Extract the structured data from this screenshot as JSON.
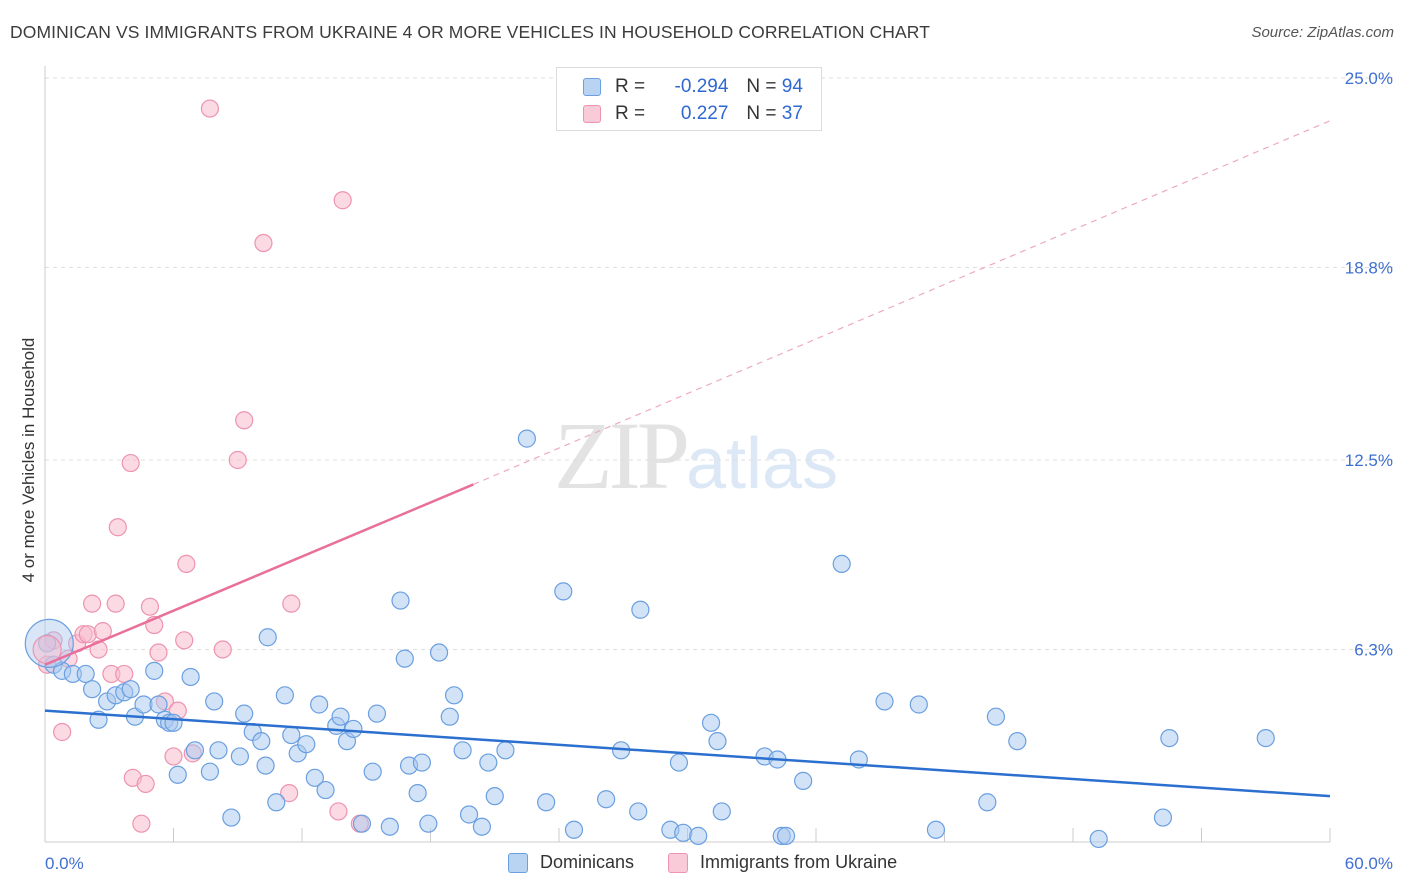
{
  "title": "DOMINICAN VS IMMIGRANTS FROM UKRAINE 4 OR MORE VEHICLES IN HOUSEHOLD CORRELATION CHART",
  "source": "Source: ZipAtlas.com",
  "watermark": {
    "zip": "ZIP",
    "atlas": "atlas"
  },
  "legend": {
    "rows": [
      {
        "r_label": "R =",
        "r_value": "-0.294",
        "n_label": "N =",
        "n_value": "94"
      },
      {
        "r_label": "R =",
        "r_value": "0.227",
        "n_label": "N =",
        "n_value": "37"
      }
    ]
  },
  "bottom_legend": [
    "Dominicans",
    "Immigrants from Ukraine"
  ],
  "colors": {
    "blue_fill": "#a8c8f0",
    "blue_stroke": "#6a9fe0",
    "blue_line": "#2b6fcf",
    "pink_fill": "#f7bccd",
    "pink_stroke": "#ee93b0",
    "pink_line": "#e8709a",
    "grid": "#dedede",
    "tick_label": "#3f6fd0"
  },
  "chart_data": {
    "type": "scatter",
    "title": "DOMINICAN VS IMMIGRANTS FROM UKRAINE 4 OR MORE VEHICLES IN HOUSEHOLD CORRELATION CHART",
    "xlabel": "",
    "ylabel": "4 or more Vehicles in Household",
    "xlim": [
      0,
      60
    ],
    "ylim": [
      0,
      25
    ],
    "x_tick_labels": [
      "0.0%",
      "60.0%"
    ],
    "y_ticks": [
      6.3,
      12.5,
      18.8,
      25.0
    ],
    "y_tick_labels": [
      "6.3%",
      "12.5%",
      "18.8%",
      "25.0%"
    ],
    "grid": true,
    "legend_position": "top-center",
    "series": [
      {
        "name": "Dominicans",
        "trend": {
          "x": [
            0,
            60
          ],
          "y": [
            4.3,
            1.5
          ],
          "style": "solid"
        },
        "points": [
          [
            0.1,
            6.5
          ],
          [
            0.4,
            5.8
          ],
          [
            0.8,
            5.6
          ],
          [
            1.3,
            5.5
          ],
          [
            1.9,
            5.5
          ],
          [
            2.2,
            5.0
          ],
          [
            2.5,
            4.0
          ],
          [
            2.9,
            4.6
          ],
          [
            3.3,
            4.8
          ],
          [
            3.7,
            4.9
          ],
          [
            4.0,
            5.0
          ],
          [
            4.2,
            4.1
          ],
          [
            4.6,
            4.5
          ],
          [
            5.1,
            5.6
          ],
          [
            5.3,
            4.5
          ],
          [
            5.6,
            4.0
          ],
          [
            5.8,
            3.9
          ],
          [
            6.0,
            3.9
          ],
          [
            6.2,
            2.2
          ],
          [
            6.8,
            5.4
          ],
          [
            7.0,
            3.0
          ],
          [
            7.7,
            2.3
          ],
          [
            7.9,
            4.6
          ],
          [
            8.1,
            3.0
          ],
          [
            8.7,
            0.8
          ],
          [
            9.1,
            2.8
          ],
          [
            9.3,
            4.2
          ],
          [
            9.7,
            3.6
          ],
          [
            10.1,
            3.3
          ],
          [
            10.3,
            2.5
          ],
          [
            10.4,
            6.7
          ],
          [
            10.8,
            1.3
          ],
          [
            11.2,
            4.8
          ],
          [
            11.5,
            3.5
          ],
          [
            11.8,
            2.9
          ],
          [
            12.2,
            3.2
          ],
          [
            12.6,
            2.1
          ],
          [
            12.8,
            4.5
          ],
          [
            13.1,
            1.7
          ],
          [
            13.6,
            3.8
          ],
          [
            13.8,
            4.1
          ],
          [
            14.1,
            3.3
          ],
          [
            14.4,
            3.7
          ],
          [
            14.8,
            0.6
          ],
          [
            15.3,
            2.3
          ],
          [
            15.5,
            4.2
          ],
          [
            16.1,
            0.5
          ],
          [
            16.6,
            7.9
          ],
          [
            16.8,
            6.0
          ],
          [
            17.0,
            2.5
          ],
          [
            17.4,
            1.6
          ],
          [
            17.6,
            2.6
          ],
          [
            17.9,
            0.6
          ],
          [
            18.4,
            6.2
          ],
          [
            18.9,
            4.1
          ],
          [
            19.1,
            4.8
          ],
          [
            19.5,
            3.0
          ],
          [
            19.8,
            0.9
          ],
          [
            20.4,
            0.5
          ],
          [
            20.7,
            2.6
          ],
          [
            21.0,
            1.5
          ],
          [
            21.5,
            3.0
          ],
          [
            22.5,
            13.2
          ],
          [
            23.4,
            1.3
          ],
          [
            24.2,
            8.2
          ],
          [
            24.7,
            0.4
          ],
          [
            26.2,
            1.4
          ],
          [
            26.9,
            3.0
          ],
          [
            27.7,
            1.0
          ],
          [
            27.8,
            7.6
          ],
          [
            29.2,
            0.4
          ],
          [
            29.6,
            2.6
          ],
          [
            29.8,
            0.3
          ],
          [
            30.5,
            0.2
          ],
          [
            31.1,
            3.9
          ],
          [
            31.4,
            3.3
          ],
          [
            31.6,
            1.0
          ],
          [
            33.6,
            2.8
          ],
          [
            34.2,
            2.7
          ],
          [
            34.4,
            0.2
          ],
          [
            34.6,
            0.2
          ],
          [
            35.4,
            2.0
          ],
          [
            37.2,
            9.1
          ],
          [
            38.0,
            2.7
          ],
          [
            39.2,
            4.6
          ],
          [
            40.8,
            4.5
          ],
          [
            41.6,
            0.4
          ],
          [
            44.0,
            1.3
          ],
          [
            44.4,
            4.1
          ],
          [
            45.4,
            3.3
          ],
          [
            49.2,
            0.1
          ],
          [
            52.2,
            0.8
          ],
          [
            52.5,
            3.4
          ],
          [
            57.0,
            3.4
          ]
        ]
      },
      {
        "name": "Immigrants from Ukraine",
        "trend": {
          "x": [
            0,
            20
          ],
          "y": [
            5.8,
            11.7
          ],
          "style": "solid",
          "extended_x": [
            20,
            60
          ],
          "extended_y": [
            11.7,
            23.6
          ],
          "extended_style": "dashed"
        },
        "points": [
          [
            0.1,
            5.8
          ],
          [
            0.4,
            6.6
          ],
          [
            0.8,
            3.6
          ],
          [
            1.1,
            6.0
          ],
          [
            1.5,
            6.5
          ],
          [
            1.8,
            6.8
          ],
          [
            2.0,
            6.8
          ],
          [
            2.2,
            7.8
          ],
          [
            2.5,
            6.3
          ],
          [
            2.7,
            6.9
          ],
          [
            3.1,
            5.5
          ],
          [
            3.3,
            7.8
          ],
          [
            3.4,
            10.3
          ],
          [
            3.7,
            5.5
          ],
          [
            4.0,
            12.4
          ],
          [
            4.1,
            2.1
          ],
          [
            4.5,
            0.6
          ],
          [
            4.7,
            1.9
          ],
          [
            4.9,
            7.7
          ],
          [
            5.1,
            7.1
          ],
          [
            5.3,
            6.2
          ],
          [
            5.6,
            4.6
          ],
          [
            6.0,
            2.8
          ],
          [
            6.2,
            4.3
          ],
          [
            6.5,
            6.6
          ],
          [
            6.6,
            9.1
          ],
          [
            7.7,
            24.0
          ],
          [
            8.3,
            6.3
          ],
          [
            9.0,
            12.5
          ],
          [
            9.3,
            13.8
          ],
          [
            10.2,
            19.6
          ],
          [
            11.5,
            7.8
          ],
          [
            11.4,
            1.6
          ],
          [
            13.7,
            1.0
          ],
          [
            13.9,
            21.0
          ],
          [
            14.7,
            0.6
          ],
          [
            6.9,
            2.9
          ]
        ]
      }
    ]
  }
}
